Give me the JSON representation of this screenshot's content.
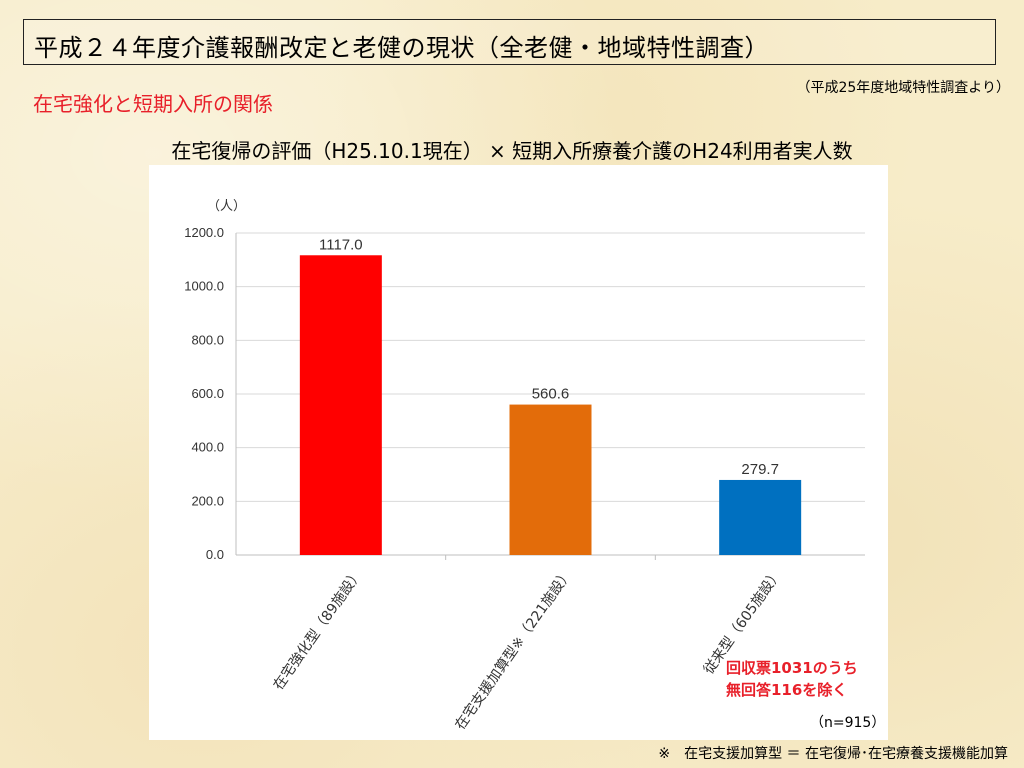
{
  "slide": {
    "title": "平成２４年度介護報酬改定と老健の現状（全老健・地域特性調査）",
    "source_note": "（平成25年度地域特性調査より）",
    "section_heading": "在宅強化と短期入所の関係",
    "red_note_line1": "回収票1031のうち",
    "red_note_line2": "無回答116を除く",
    "n_note": "（n=915）",
    "footnote": "※　在宅支援加算型 ＝ 在宅復帰･在宅療養支援機能加算"
  },
  "colors": {
    "heading_red": "#e8202a",
    "background": "#f7ecc9"
  },
  "chart_data": {
    "type": "bar",
    "title": "在宅復帰の評価（H25.10.1現在） × 短期入所療養介護のH24利用者実人数",
    "ylabel": "（人）",
    "xlabel": "",
    "ylim": [
      0,
      1200
    ],
    "yticks": [
      "0.0",
      "200.0",
      "400.0",
      "600.0",
      "800.0",
      "1000.0",
      "1200.0"
    ],
    "grid": true,
    "legend": "none",
    "categories": [
      "在宅強化型（89施設）",
      "在宅支援加算型※（221施設）",
      "従来型（605施設）"
    ],
    "values": [
      1117.0,
      560.6,
      279.7
    ],
    "value_labels": [
      "1117.0",
      "560.6",
      "279.7"
    ],
    "bar_colors": [
      "#ff0000",
      "#e36c0a",
      "#0070c0"
    ]
  }
}
